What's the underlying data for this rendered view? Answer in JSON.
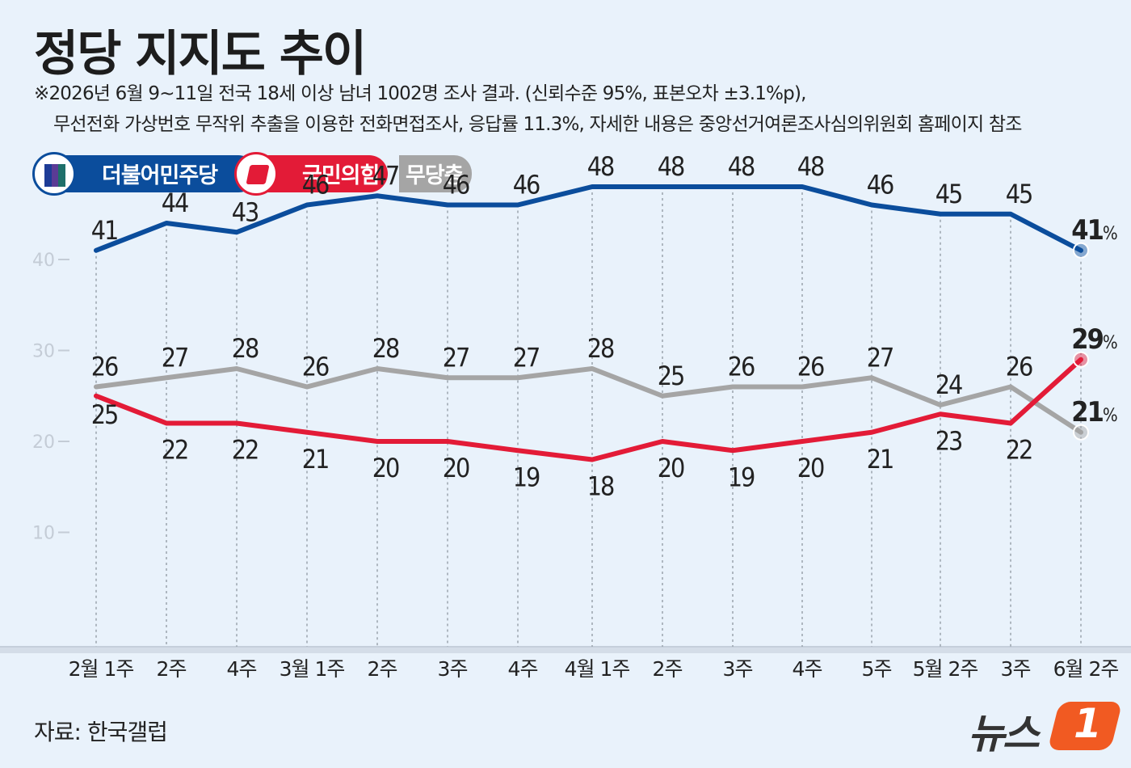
{
  "title": "정당 지지도 추이",
  "notes": [
    "※2026년 6월 9~11일 전국 18세 이상 남녀 1002명 조사 결과. (신뢰수준 95%, 표본오차 ±3.1%p),",
    "무선전화 가상번호 무작위 추출을 이용한 전화면접조사, 응답률 11.3%, 자세한 내용은 중앙선거여론조사심의위원회 홈페이지 참조"
  ],
  "source": "자료: 한국갤럽",
  "logo_text": "뉴스",
  "logo_badge": "1",
  "chart_data": {
    "type": "line",
    "categories": [
      "2월 1주",
      "2주",
      "4주",
      "3월 1주",
      "2주",
      "3주",
      "4주",
      "4월 1주",
      "2주",
      "3주",
      "4주",
      "5주",
      "5월 2주",
      "3주",
      "6월 2주"
    ],
    "ylim": [
      5,
      52
    ],
    "yticks": [
      10,
      20,
      30,
      40
    ],
    "grid": "vertical dotted",
    "legend_position": "top-left",
    "unit_suffix": "%",
    "series": [
      {
        "name": "더불어민주당",
        "color": "#0b4d9c",
        "values": [
          41,
          44,
          43,
          46,
          47,
          46,
          46,
          48,
          48,
          48,
          48,
          46,
          45,
          45,
          41
        ],
        "label_side": "above"
      },
      {
        "name": "국민의힘",
        "color": "#e31b37",
        "values": [
          25,
          22,
          22,
          21,
          20,
          20,
          19,
          18,
          20,
          19,
          20,
          21,
          23,
          22,
          29
        ],
        "label_side": "below"
      },
      {
        "name": "무당층",
        "color": "#a5a5a5",
        "values": [
          26,
          27,
          28,
          26,
          28,
          27,
          27,
          28,
          25,
          26,
          26,
          27,
          24,
          26,
          21
        ],
        "label_side": "above"
      }
    ],
    "legend_dem_stripe_colors": [
      "#1e3c96",
      "#5b3b95",
      "#1e6f6a"
    ]
  }
}
